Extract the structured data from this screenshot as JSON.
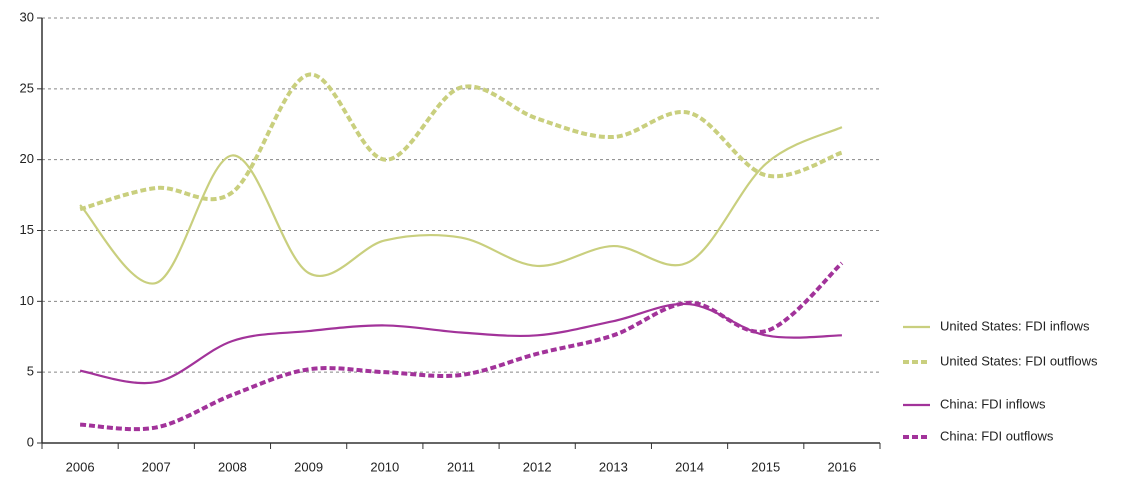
{
  "chart_data": {
    "type": "line",
    "categories": [
      "2006",
      "2007",
      "2008",
      "2009",
      "2010",
      "2011",
      "2012",
      "2013",
      "2014",
      "2015",
      "2016"
    ],
    "ylim": [
      0,
      30
    ],
    "yticks": [
      0,
      5,
      10,
      15,
      20,
      25,
      30
    ],
    "grid": true,
    "legend": "right",
    "series": [
      {
        "name": "United States: FDI inflows",
        "color": "#c9cf7e",
        "dashed": false,
        "values": [
          16.8,
          11.3,
          20.3,
          12.0,
          14.3,
          14.5,
          12.5,
          13.9,
          12.8,
          19.7,
          22.3
        ]
      },
      {
        "name": "United States: FDI outflows",
        "color": "#c9cf7e",
        "dashed": true,
        "values": [
          16.5,
          18.0,
          17.7,
          26.0,
          20.0,
          25.1,
          22.9,
          21.6,
          23.3,
          18.9,
          20.5
        ]
      },
      {
        "name": "China: FDI inflows",
        "color": "#a2339a",
        "dashed": false,
        "values": [
          5.1,
          4.3,
          7.2,
          7.9,
          8.3,
          7.8,
          7.6,
          8.6,
          9.8,
          7.6,
          7.6
        ]
      },
      {
        "name": "China: FDI outflows",
        "color": "#a2339a",
        "dashed": true,
        "values": [
          1.3,
          1.1,
          3.4,
          5.2,
          5.0,
          4.8,
          6.3,
          7.6,
          9.9,
          7.9,
          12.7
        ]
      }
    ]
  }
}
